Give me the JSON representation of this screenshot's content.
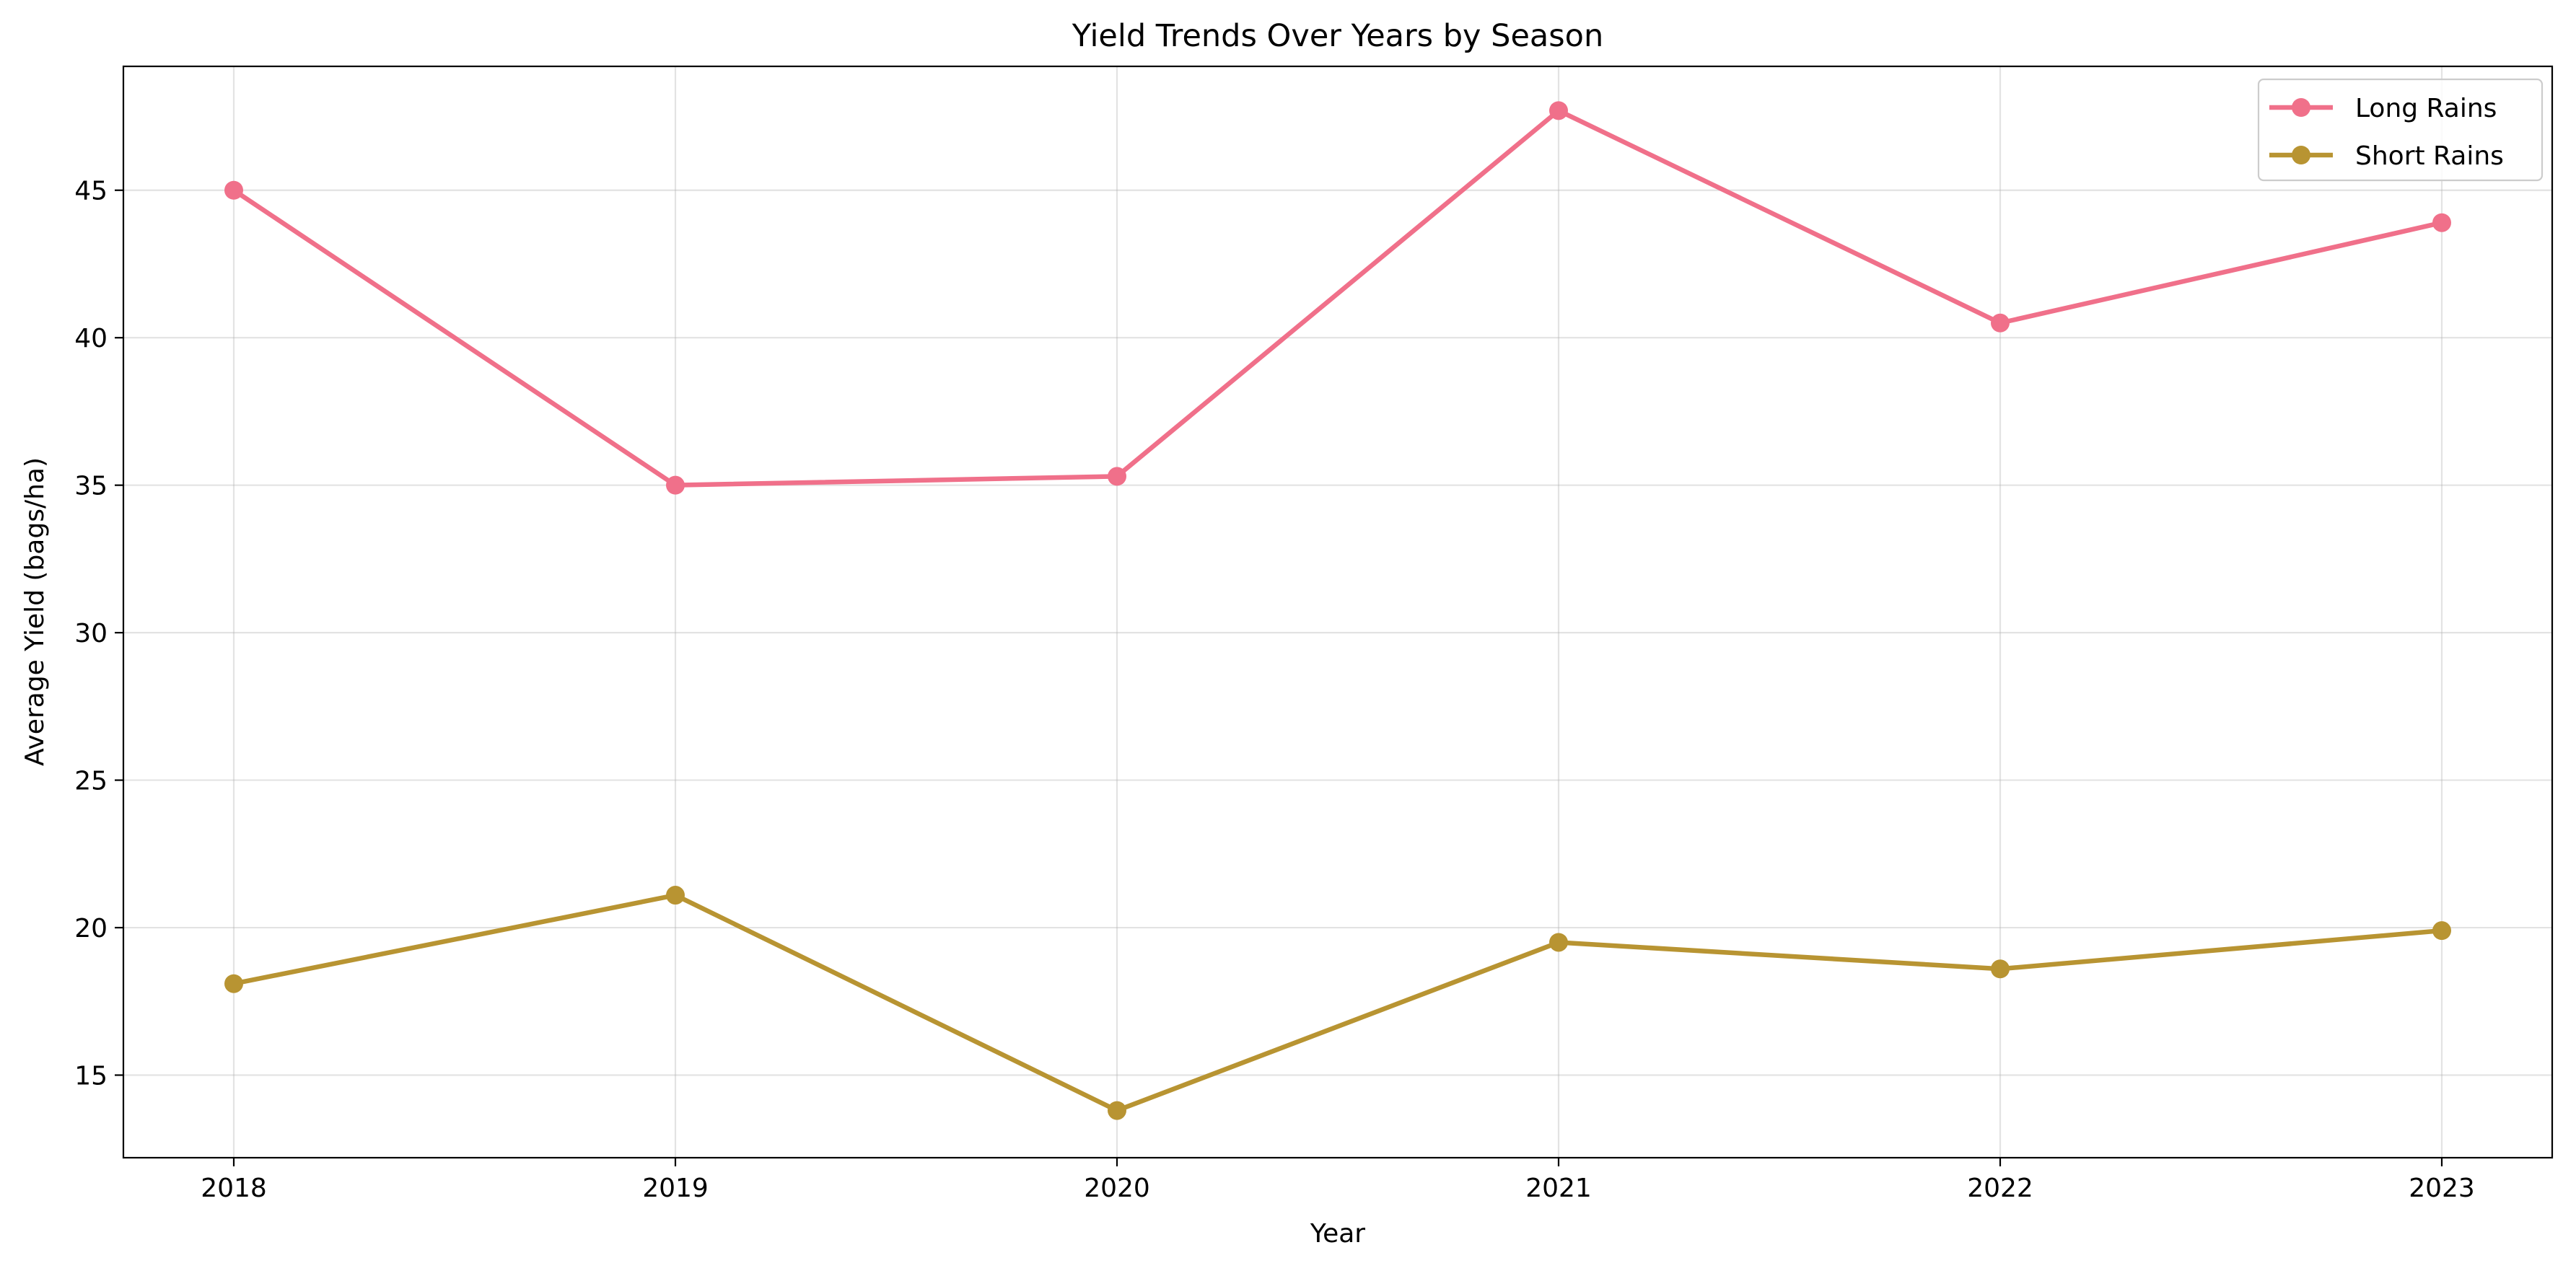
{
  "chart_data": {
    "type": "line",
    "title": "Yield Trends Over Years by Season",
    "xlabel": "Year",
    "ylabel": "Average Yield (bags/ha)",
    "x": [
      2018,
      2019,
      2020,
      2021,
      2022,
      2023
    ],
    "x_tick_labels": [
      "2018",
      "2019",
      "2020",
      "2021",
      "2022",
      "2023"
    ],
    "xlim": [
      2017.75,
      2023.25
    ],
    "ylim": [
      12.2,
      49.2
    ],
    "y_ticks": [
      15,
      20,
      25,
      30,
      35,
      40,
      45
    ],
    "y_tick_labels": [
      "15",
      "20",
      "25",
      "30",
      "35",
      "40",
      "45"
    ],
    "grid": true,
    "legend_position": "top-right",
    "series": [
      {
        "name": "Long Rains",
        "color": "#f0708a",
        "marker": "circle",
        "values": [
          45.0,
          35.0,
          35.3,
          47.7,
          40.5,
          43.9
        ]
      },
      {
        "name": "Short Rains",
        "color": "#b89432",
        "marker": "circle",
        "values": [
          18.1,
          21.1,
          13.8,
          19.5,
          18.6,
          19.9
        ]
      }
    ]
  }
}
